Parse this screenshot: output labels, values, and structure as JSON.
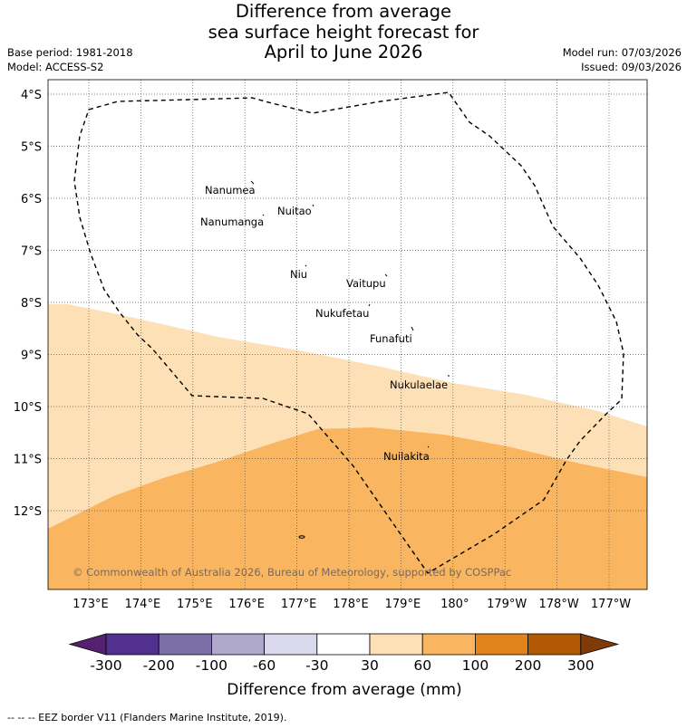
{
  "title": {
    "line1": "Difference from average",
    "line2": "sea surface height forecast for",
    "line3": "April to June 2026"
  },
  "meta": {
    "base_period": "Base period: 1981-2018",
    "model": "Model: ACCESS-S2",
    "model_run": "Model run: 07/03/2026",
    "issued": "Issued: 09/03/2026"
  },
  "map": {
    "lat_ticks": [
      "4°S",
      "5°S",
      "6°S",
      "7°S",
      "8°S",
      "9°S",
      "10°S",
      "11°S",
      "12°S"
    ],
    "lon_ticks": [
      "173°E",
      "174°E",
      "175°E",
      "176°E",
      "177°E",
      "178°E",
      "179°E",
      "180°",
      "179°W",
      "178°W",
      "177°W"
    ],
    "places": [
      {
        "name": "Nanumea"
      },
      {
        "name": "Nuitao"
      },
      {
        "name": "Nanumanga"
      },
      {
        "name": "Niu"
      },
      {
        "name": "Vaitupu"
      },
      {
        "name": "Nukufetau"
      },
      {
        "name": "Funafuti"
      },
      {
        "name": "Nukulaelae"
      },
      {
        "name": "Nuilakita"
      }
    ],
    "copyright": "© Commonwealth of Australia 2026, Bureau of Meteorology, supported by COSPPac",
    "colors": {
      "band_30_60": "#fde0b6",
      "band_60_100": "#f9b560",
      "land_background": "#ffffff"
    }
  },
  "colorbar": {
    "ticks": [
      "-300",
      "-200",
      "-100",
      "-60",
      "-30",
      "30",
      "60",
      "100",
      "200",
      "300"
    ],
    "colors": [
      "#55206f",
      "#513090",
      "#7c6fa8",
      "#aea8cd",
      "#d9d9eb",
      "#ffffff",
      "#fde0b6",
      "#f9b560",
      "#e3831b",
      "#b35906",
      "#803a0a"
    ],
    "label": "Difference from average (mm)"
  },
  "footer": "--  --  -- EEZ border V11 (Flanders Marine Institute, 2019)."
}
